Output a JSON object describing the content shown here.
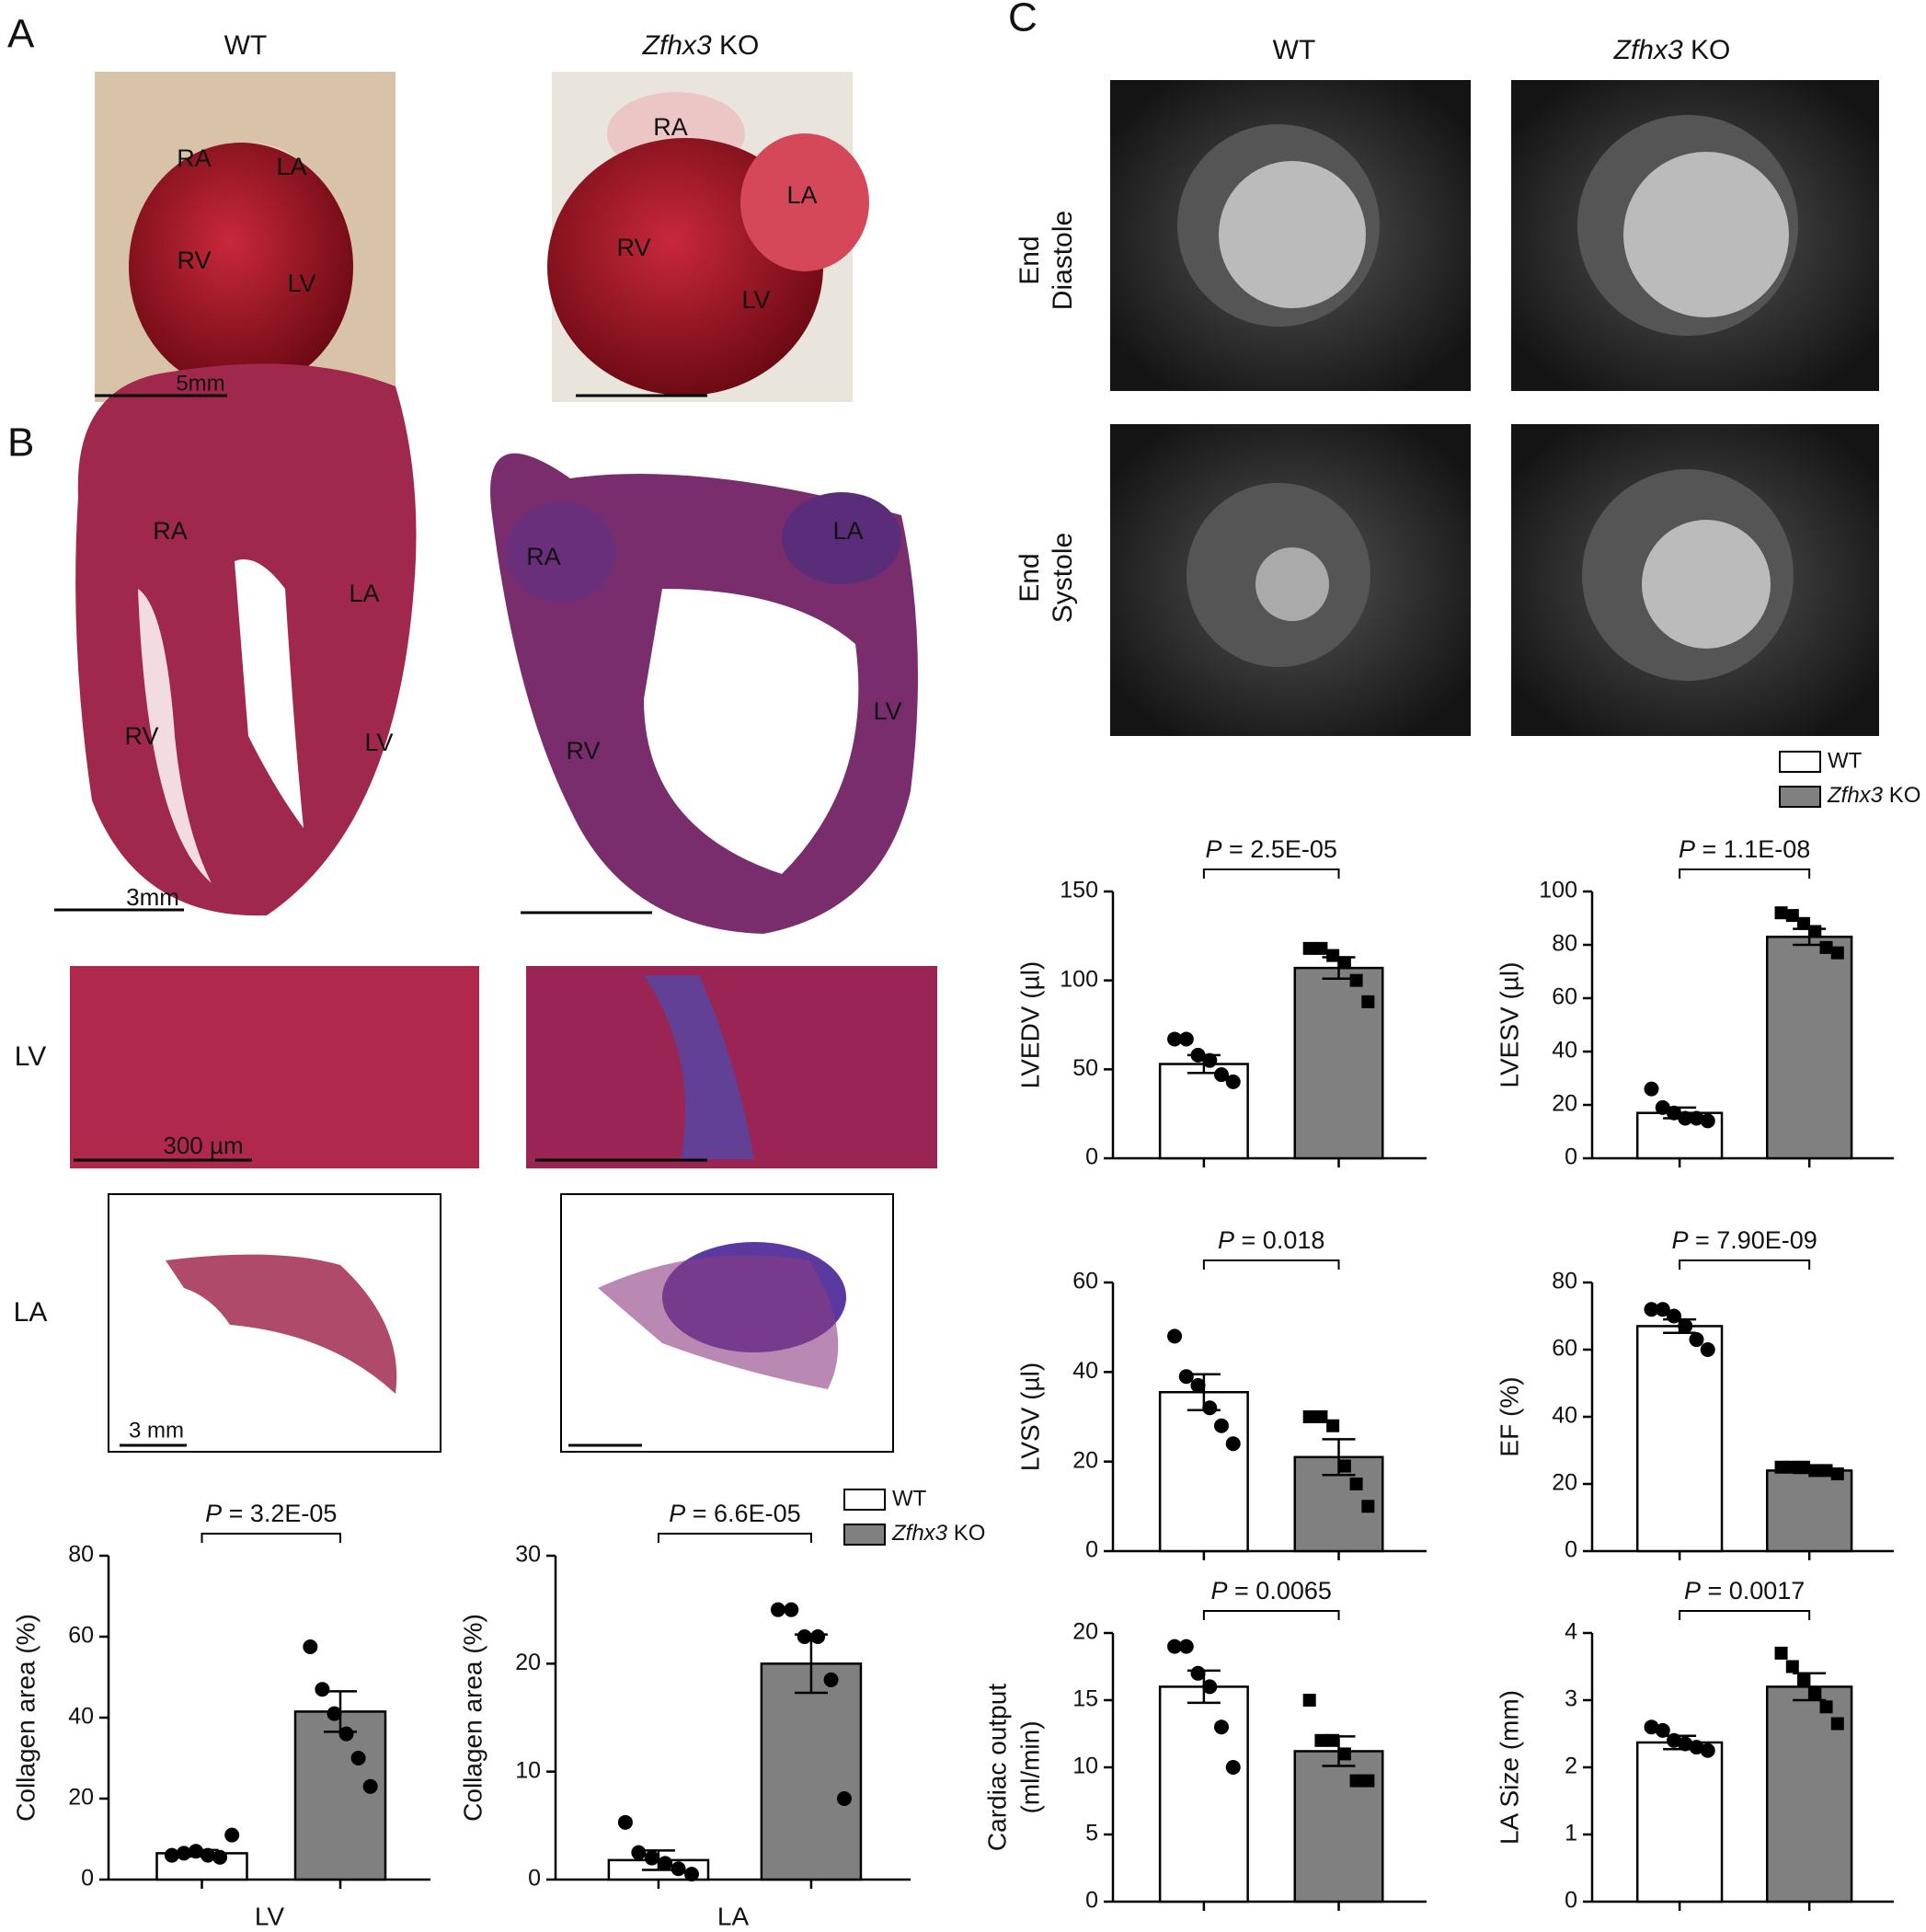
{
  "panel_letters": [
    "A",
    "B",
    "C"
  ],
  "panel_a": {
    "wt_title": "WT",
    "ko_title": {
      "italic": "Zfhx3",
      "text": " KO"
    },
    "wt_labels": [
      "RA",
      "LA",
      "RV",
      "LV"
    ],
    "wt_scale": "5mm",
    "ko_labels": [
      "RA",
      "LA",
      "RV",
      "LV"
    ]
  },
  "panel_b": {
    "wt_labels": [
      "RA",
      "LA",
      "RV",
      "LV"
    ],
    "wt_scale": "3mm",
    "ko_labels": [
      "RA",
      "LA",
      "RV",
      "LV"
    ],
    "row_labels": [
      "LV",
      "LA"
    ],
    "micro_scale": "300 µm",
    "la_scale": "3 mm",
    "legend": [
      {
        "name": "WT",
        "color": "#ffffff"
      },
      {
        "name": {
          "italic": "Zfhx3",
          "text": " KO"
        },
        "color": "#808080"
      }
    ]
  },
  "panel_c": {
    "wt_title": "WT",
    "ko_title": {
      "italic": "Zfhx3",
      "text": " KO"
    },
    "row_labels": [
      [
        "End",
        "Diastole"
      ],
      [
        "End",
        "Systole"
      ]
    ],
    "legend": [
      {
        "name": "WT",
        "color": "#ffffff"
      },
      {
        "name": {
          "italic": "Zfhx3",
          "text": " KO"
        },
        "color": "#808080"
      }
    ]
  },
  "chart_data": [
    {
      "type": "bar",
      "ylabel": [
        "Collagen area (%)"
      ],
      "xlabel": "LV",
      "annotation": {
        "italic": "P",
        "text": " = 3.2E-05"
      },
      "categories": [
        null,
        null
      ],
      "values": [
        6.5,
        41.5
      ],
      "errors": [
        0.8,
        5
      ],
      "bar_colors": [
        "#ffffff",
        "#808080"
      ],
      "markers": [
        "circle",
        "circle"
      ],
      "points": [
        [
          6,
          6.5,
          7,
          6,
          5.5,
          11
        ],
        [
          57.5,
          47,
          41,
          36,
          30,
          23
        ]
      ],
      "ylim": [
        0,
        80
      ],
      "yticks": [
        0,
        20,
        40,
        60,
        80
      ]
    },
    {
      "type": "bar",
      "ylabel": [
        "Collagen area (%)"
      ],
      "xlabel": "LA",
      "annotation": {
        "italic": "P",
        "text": " = 6.6E-05"
      },
      "categories": [
        null,
        null
      ],
      "values": [
        1.8,
        20
      ],
      "errors": [
        0.9,
        2.7
      ],
      "bar_colors": [
        "#ffffff",
        "#808080"
      ],
      "markers": [
        "circle",
        "circle"
      ],
      "points": [
        [
          5.3,
          2.5,
          2,
          1.5,
          1,
          0.5
        ],
        [
          25,
          25,
          22.5,
          22.5,
          18.5,
          7.5
        ]
      ],
      "ylim": [
        0,
        30
      ],
      "yticks": [
        0,
        10,
        20,
        30
      ]
    },
    {
      "type": "bar",
      "ylabel": [
        "LVEDV (µl)"
      ],
      "annotation": {
        "italic": "P",
        "text": " = 2.5E-05"
      },
      "categories": [
        null,
        null
      ],
      "values": [
        53,
        107
      ],
      "errors": [
        5,
        6
      ],
      "bar_colors": [
        "#ffffff",
        "#808080"
      ],
      "markers": [
        "circle",
        "square"
      ],
      "points": [
        [
          67,
          67,
          58,
          55,
          47,
          43
        ],
        [
          118,
          118,
          114,
          110,
          100,
          88
        ]
      ],
      "ylim": [
        0,
        150
      ],
      "yticks": [
        0,
        50,
        100,
        150
      ]
    },
    {
      "type": "bar",
      "ylabel": [
        "LVESV (µl)"
      ],
      "annotation": {
        "italic": "P",
        "text": " = 1.1E-08"
      },
      "categories": [
        null,
        null
      ],
      "values": [
        17,
        83
      ],
      "errors": [
        2,
        3
      ],
      "bar_colors": [
        "#ffffff",
        "#808080"
      ],
      "markers": [
        "circle",
        "square"
      ],
      "points": [
        [
          26,
          19,
          17,
          15,
          15,
          14
        ],
        [
          92,
          91,
          88,
          85,
          79,
          77
        ]
      ],
      "ylim": [
        0,
        100
      ],
      "yticks": [
        0,
        20,
        40,
        60,
        80,
        100
      ]
    },
    {
      "type": "bar",
      "ylabel": [
        "LVSV (µl)"
      ],
      "annotation": {
        "italic": "P",
        "text": " = 0.018"
      },
      "categories": [
        null,
        null
      ],
      "values": [
        35.5,
        21
      ],
      "errors": [
        4,
        4
      ],
      "bar_colors": [
        "#ffffff",
        "#808080"
      ],
      "markers": [
        "circle",
        "square"
      ],
      "points": [
        [
          48,
          39,
          37,
          32,
          28,
          24
        ],
        [
          30,
          30,
          28,
          19,
          15,
          10
        ]
      ],
      "ylim": [
        0,
        60
      ],
      "yticks": [
        0,
        20,
        40,
        60
      ]
    },
    {
      "type": "bar",
      "ylabel": [
        "EF (%)"
      ],
      "annotation": {
        "italic": "P",
        "text": " = 7.90E-09"
      },
      "categories": [
        null,
        null
      ],
      "values": [
        67,
        24
      ],
      "errors": [
        2,
        0.7
      ],
      "bar_colors": [
        "#ffffff",
        "#808080"
      ],
      "markers": [
        "circle",
        "square"
      ],
      "points": [
        [
          72,
          72,
          70,
          67,
          63,
          60
        ],
        [
          25,
          25,
          25,
          24,
          24,
          23
        ]
      ],
      "ylim": [
        0,
        80
      ],
      "yticks": [
        0,
        20,
        40,
        60,
        80
      ]
    },
    {
      "type": "bar",
      "ylabel": [
        "Cardiac output",
        "(ml/min)"
      ],
      "annotation": {
        "italic": "P",
        "text": " = 0.0065"
      },
      "categories": [
        null,
        null
      ],
      "values": [
        16,
        11.2
      ],
      "errors": [
        1.2,
        1.1
      ],
      "bar_colors": [
        "#ffffff",
        "#808080"
      ],
      "markers": [
        "circle",
        "square"
      ],
      "points": [
        [
          19,
          19,
          17,
          16,
          13,
          10
        ],
        [
          15,
          12,
          12,
          11,
          9,
          9
        ]
      ],
      "ylim": [
        0,
        20
      ],
      "yticks": [
        0,
        5,
        10,
        15,
        20
      ]
    },
    {
      "type": "bar",
      "ylabel": [
        "LA Size (mm)"
      ],
      "annotation": {
        "italic": "P",
        "text": " = 0.0017"
      },
      "categories": [
        null,
        null
      ],
      "values": [
        2.37,
        3.2
      ],
      "errors": [
        0.1,
        0.2
      ],
      "bar_colors": [
        "#ffffff",
        "#808080"
      ],
      "markers": [
        "circle",
        "square"
      ],
      "points": [
        [
          2.6,
          2.55,
          2.4,
          2.35,
          2.3,
          2.25
        ],
        [
          3.7,
          3.5,
          3.3,
          3.1,
          2.9,
          2.65
        ]
      ],
      "ylim": [
        0,
        4
      ],
      "yticks": [
        0,
        1,
        2,
        3,
        4
      ]
    }
  ]
}
